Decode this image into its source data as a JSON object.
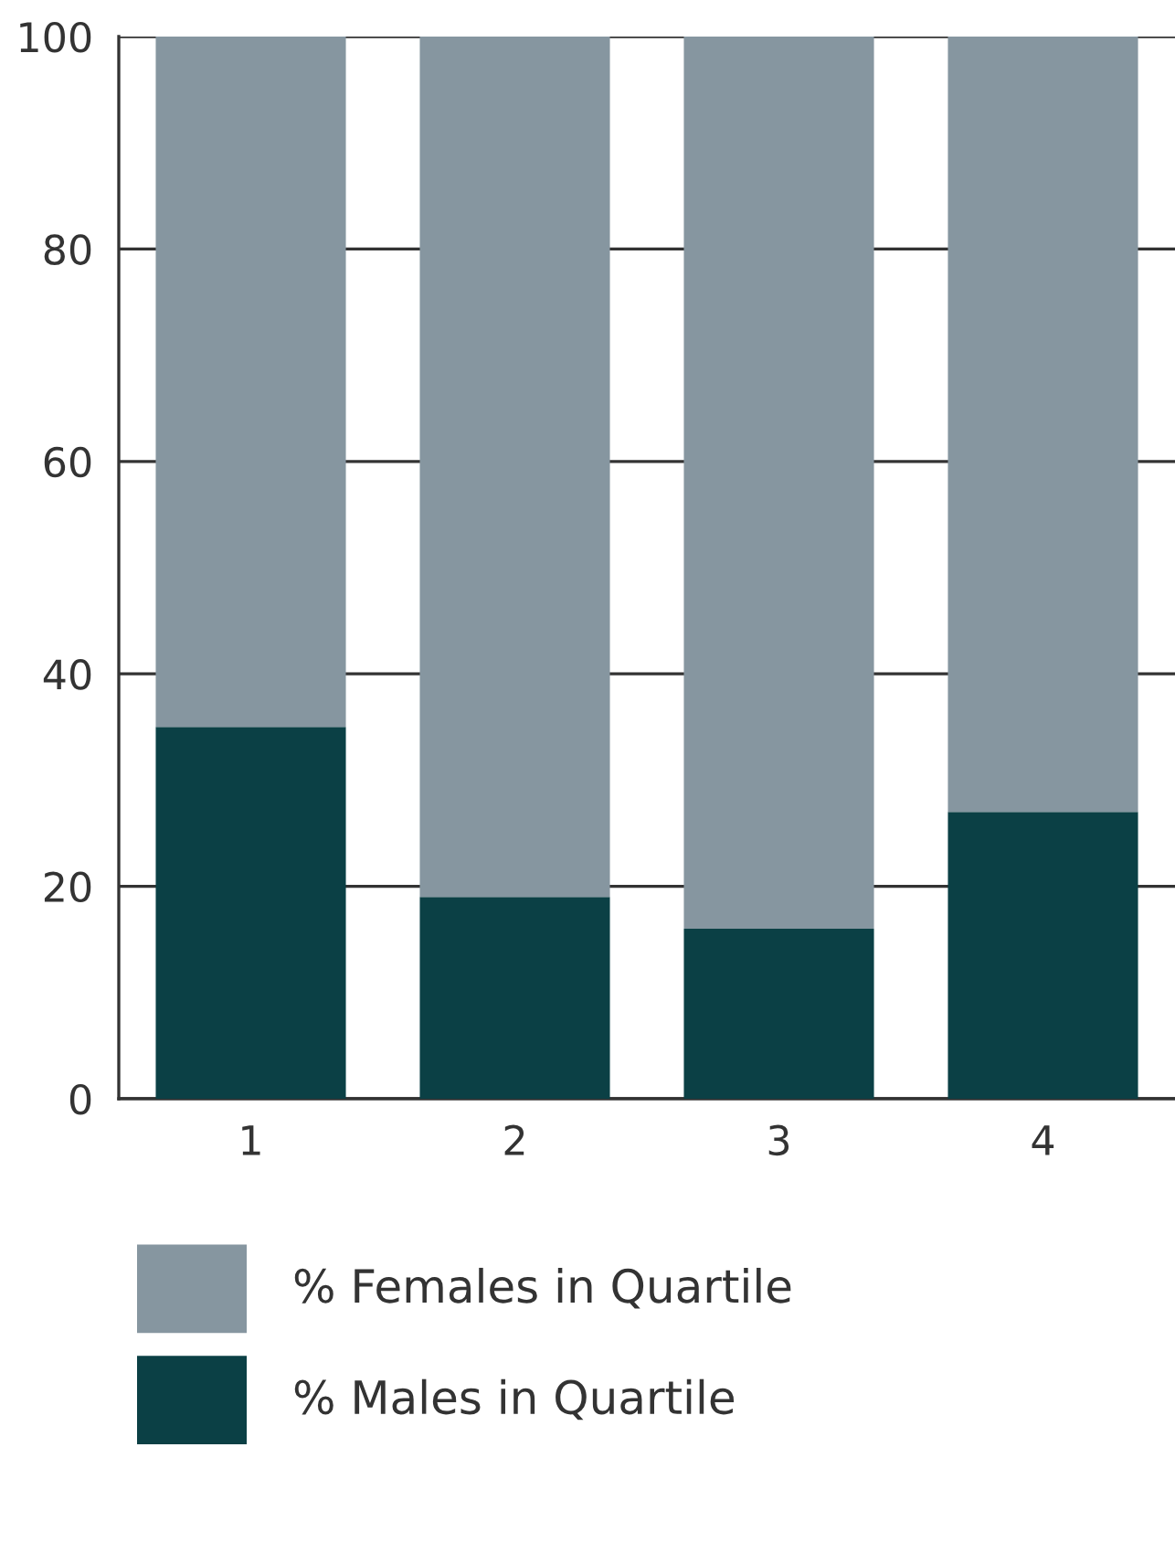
{
  "chart_data": {
    "type": "bar",
    "stacked": true,
    "categories": [
      "1",
      "2",
      "3",
      "4"
    ],
    "series": [
      {
        "name": "% Males in Quartile",
        "color": "#0b4045",
        "values": [
          35,
          19,
          16,
          27
        ]
      },
      {
        "name": "% Females in Quartile",
        "color": "#8696a0",
        "values": [
          65,
          81,
          84,
          73
        ]
      }
    ],
    "ylim": [
      0,
      100
    ],
    "yticks": [
      0,
      20,
      40,
      60,
      80,
      100
    ],
    "grid": "y",
    "legend": "bottom"
  }
}
